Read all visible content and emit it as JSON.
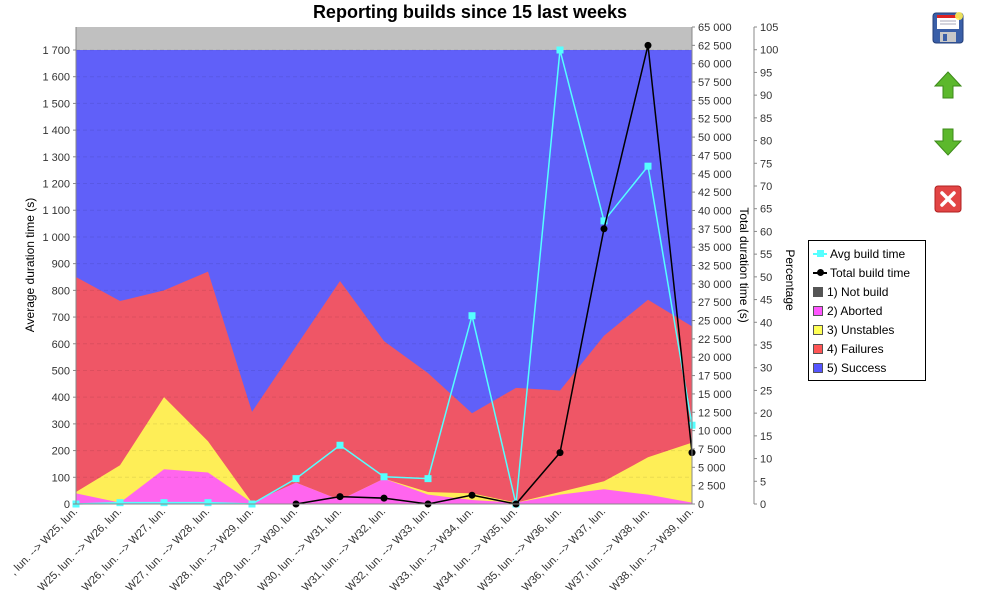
{
  "chart_data": {
    "type": "area",
    "title": "Reporting builds since 15 last weeks",
    "xlabel": "",
    "ylabel": "Average duration time (s)",
    "y2label": "Total duration time (s)",
    "y3label": "Percentage",
    "categories": [
      ", lun. --> W25, lun.",
      "W25, lun. --> W26, lun.",
      "W26, lun. --> W27, lun.",
      "W27, lun. --> W28, lun.",
      "W28, lun. --> W29, lun.",
      "W29, lun. --> W30, lun.",
      "W30, lun. --> W31, lun.",
      "W31, lun. --> W32, lun.",
      "W32, lun. --> W33, lun.",
      "W33, lun. --> W34, lun.",
      "W34, lun. --> W35, lun.",
      "W35, lun. --> W36, lun.",
      "W36, lun. --> W37, lun.",
      "W37, lun. --> W38, lun.",
      "W38, lun. --> W39, lun."
    ],
    "stacked_area_series_cumulative_left_axis_scale": [
      {
        "name": "1) Not build",
        "color": "#555555",
        "values": [
          0,
          0,
          0,
          0,
          0,
          0,
          0,
          0,
          0,
          0,
          0,
          0,
          0,
          0,
          0
        ]
      },
      {
        "name": "2) Aborted",
        "color": "#ff55ff",
        "values": [
          40,
          5,
          130,
          118,
          5,
          80,
          15,
          95,
          35,
          15,
          5,
          35,
          55,
          35,
          5
        ]
      },
      {
        "name": "3) Unstables",
        "color": "#ffff55",
        "values": [
          45,
          145,
          400,
          235,
          5,
          80,
          15,
          95,
          45,
          40,
          5,
          45,
          85,
          175,
          230
        ]
      },
      {
        "name": "4) Failures",
        "color": "#ff5555",
        "values": [
          850,
          760,
          800,
          870,
          345,
          590,
          835,
          610,
          490,
          340,
          435,
          425,
          630,
          765,
          665
        ]
      },
      {
        "name": "5) Success",
        "color": "#5555ff",
        "values": [
          1700,
          1700,
          1700,
          1700,
          1700,
          1700,
          1700,
          1700,
          1700,
          1700,
          1700,
          1700,
          1700,
          1700,
          1700
        ]
      }
    ],
    "series": [
      {
        "name": "Avg build time",
        "axis": "left",
        "color": "#55ffff",
        "marker": "square",
        "values": [
          0,
          5,
          5,
          5,
          0,
          95,
          220,
          102,
          95,
          705,
          0,
          1700,
          1060,
          1265,
          295
        ]
      },
      {
        "name": "Total build time",
        "axis": "right",
        "color": "#000000",
        "marker": "circle",
        "values": [
          null,
          null,
          null,
          null,
          null,
          0,
          1000,
          800,
          0,
          1200,
          0,
          7000,
          37500,
          62500,
          7000
        ]
      }
    ],
    "ylim": [
      0,
      1785
    ],
    "y2lim": [
      0,
      65000
    ],
    "y3lim": [
      0,
      105
    ],
    "yticks": [
      "0",
      "100",
      "200",
      "300",
      "400",
      "500",
      "600",
      "700",
      "800",
      "900",
      "1 000",
      "1 100",
      "1 200",
      "1 300",
      "1 400",
      "1 500",
      "1 600",
      "1 700"
    ],
    "y2ticks": [
      "0",
      "2 500",
      "5 000",
      "7 500",
      "10 000",
      "12 500",
      "15 000",
      "17 500",
      "20 000",
      "22 500",
      "25 000",
      "27 500",
      "30 000",
      "32 500",
      "35 000",
      "37 500",
      "40 000",
      "42 500",
      "45 000",
      "47 500",
      "50 000",
      "52 500",
      "55 000",
      "57 500",
      "60 000",
      "62 500",
      "65 000"
    ],
    "y3ticks": [
      "0",
      "5",
      "10",
      "15",
      "20",
      "25",
      "30",
      "35",
      "40",
      "45",
      "50",
      "55",
      "60",
      "65",
      "70",
      "75",
      "80",
      "85",
      "90",
      "95",
      "100",
      "105"
    ],
    "grid": true,
    "legend_position": "right"
  },
  "legend": {
    "items": [
      {
        "label": "Avg build time",
        "kind": "line-square",
        "color": "#55ffff"
      },
      {
        "label": "Total build time",
        "kind": "line-circle",
        "color": "#000000"
      },
      {
        "label": "1) Not build",
        "kind": "swatch",
        "color": "#555555"
      },
      {
        "label": "2) Aborted",
        "kind": "swatch",
        "color": "#ff55ff"
      },
      {
        "label": "3) Unstables",
        "kind": "swatch",
        "color": "#ffff55"
      },
      {
        "label": "4) Failures",
        "kind": "swatch",
        "color": "#ff5555"
      },
      {
        "label": "5) Success",
        "kind": "swatch",
        "color": "#5555ff"
      }
    ]
  },
  "toolbar": {
    "save": "floppy-save-icon",
    "up": "arrow-up-icon",
    "down": "arrow-down-icon",
    "close": "close-icon"
  }
}
